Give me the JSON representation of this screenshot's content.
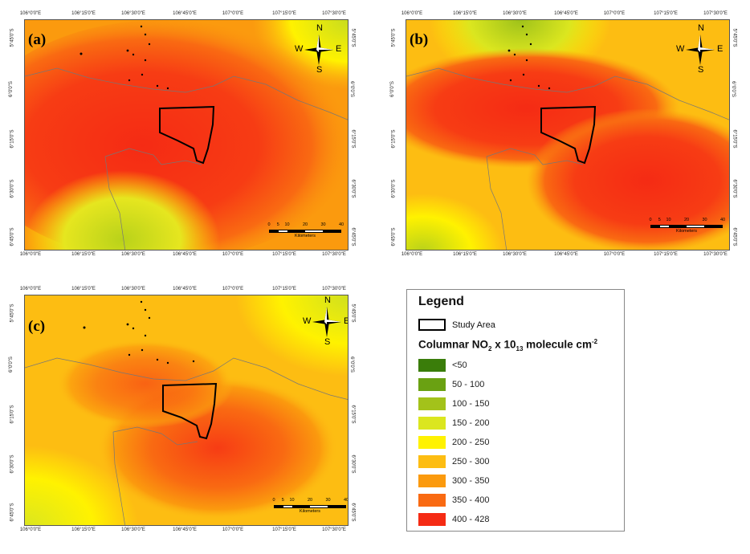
{
  "panels": [
    {
      "id": "a",
      "label": "(a)",
      "top_ticks": [
        "106°0'0\"E",
        "106°15'0\"E",
        "106°30'0\"E",
        "106°45'0\"E",
        "107°0'0\"E",
        "107°15'0\"E",
        "107°30'0\"E"
      ],
      "bottom_ticks": [
        "106°0'0\"E",
        "106°15'0\"E",
        "106°30'0\"E",
        "106°45'0\"E",
        "107°0'0\"E",
        "107°15'0\"E",
        "107°30'0\"E"
      ],
      "left_ticks": [
        "5°45'0\"S",
        "6°0'0\"S",
        "6°15'0\"S",
        "6°30'0\"S",
        "6°45'0\"S"
      ],
      "right_ticks": [
        "5°45'0\"S",
        "6°0'0\"S",
        "6°15'0\"S",
        "6°30'0\"S",
        "6°45'0\"S"
      ]
    },
    {
      "id": "b",
      "label": "(b)",
      "top_ticks": [
        "106°0'0\"E",
        "106°15'0\"E",
        "106°30'0\"E",
        "106°45'0\"E",
        "107°0'0\"E",
        "107°15'0\"E",
        "107°30'0\"E"
      ],
      "bottom_ticks": [
        "106°0'0\"E",
        "106°15'0\"E",
        "106°30'0\"E",
        "106°45'0\"E",
        "107°0'0\"E",
        "107°15'0\"E",
        "107°30'0\"E"
      ],
      "left_ticks": [
        "5°45'0\"S",
        "6°0'0\"S",
        "6°15'0\"S",
        "6°30'0\"S",
        "6°45'0\"S"
      ],
      "right_ticks": [
        "5°45'0\"S",
        "6°0'0\"S",
        "6°15'0\"S",
        "6°30'0\"S",
        "6°45'0\"S"
      ]
    },
    {
      "id": "c",
      "label": "(c)",
      "top_ticks": [
        "106°0'0\"E",
        "106°15'0\"E",
        "106°30'0\"E",
        "106°45'0\"E",
        "107°0'0\"E",
        "107°15'0\"E",
        "107°30'0\"E"
      ],
      "bottom_ticks": [
        "106°0'0\"E",
        "106°15'0\"E",
        "106°30'0\"E",
        "106°45'0\"E",
        "107°0'0\"E",
        "107°15'0\"E",
        "107°30'0\"E"
      ],
      "left_ticks": [
        "5°45'0\"S",
        "6°0'0\"S",
        "6°15'0\"S",
        "6°30'0\"S",
        "6°45'0\"S"
      ],
      "right_ticks": [
        "5°45'0\"S",
        "6°0'0\"S",
        "6°15'0\"S",
        "6°30'0\"S",
        "6°45'0\"S"
      ]
    }
  ],
  "compass": {
    "n": "N",
    "s": "S",
    "e": "E",
    "w": "W"
  },
  "scalebar": {
    "ticks": [
      "0",
      "5",
      "10",
      "20",
      "30",
      "40"
    ],
    "unit": "Kilometers"
  },
  "legend": {
    "title": "Legend",
    "study_area_label": "Study Area",
    "variable_prefix": "Columnar NO",
    "variable_sub1": "2",
    "variable_mid": " x 10",
    "variable_sub2": "13",
    "variable_mid2": " molecule cm",
    "variable_sup": "-2",
    "classes": [
      {
        "label": "<50",
        "color": "#3a7d0a"
      },
      {
        "label": "50 - 100",
        "color": "#6aa112"
      },
      {
        "label": "100 - 150",
        "color": "#a3c21a"
      },
      {
        "label": "150 - 200",
        "color": "#dbe61f"
      },
      {
        "label": "200 - 250",
        "color": "#fff200"
      },
      {
        "label": "250 - 300",
        "color": "#fdbd12"
      },
      {
        "label": "300 - 350",
        "color": "#fb9a0e"
      },
      {
        "label": "350 - 400",
        "color": "#f96a12"
      },
      {
        "label": "400 - 428",
        "color": "#f52b14"
      }
    ]
  }
}
